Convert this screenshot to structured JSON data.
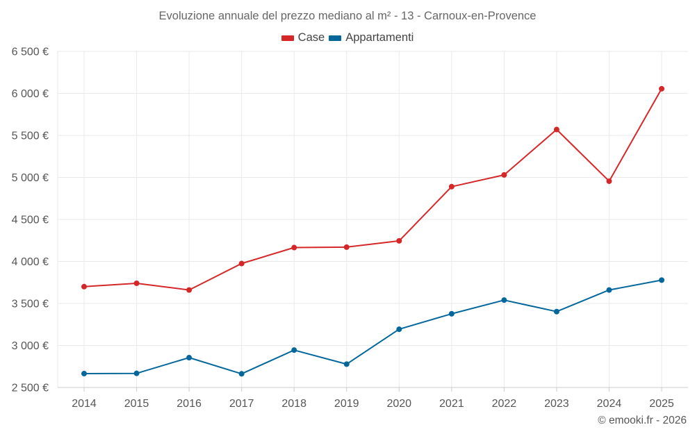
{
  "chart_data": {
    "type": "line",
    "title": "Evoluzione annuale del prezzo mediano al m² - 13 - Carnoux-en-Provence",
    "xlabel": "",
    "ylabel": "",
    "categories": [
      "2014",
      "2015",
      "2016",
      "2017",
      "2018",
      "2019",
      "2020",
      "2021",
      "2022",
      "2023",
      "2024",
      "2025"
    ],
    "ylim": [
      2500,
      6500
    ],
    "yticks": [
      2500,
      3000,
      3500,
      4000,
      4500,
      5000,
      5500,
      6000,
      6500
    ],
    "ytick_labels": [
      "2 500 €",
      "3 000 €",
      "3 500 €",
      "4 000 €",
      "4 500 €",
      "5 000 €",
      "5 500 €",
      "6 000 €",
      "6 500 €"
    ],
    "grid": true,
    "legend_position": "top-center",
    "series": [
      {
        "name": "Case",
        "color": "#d62728",
        "values": [
          3700,
          3740,
          3660,
          3975,
          4165,
          4170,
          4245,
          4890,
          5030,
          5570,
          4955,
          6055
        ]
      },
      {
        "name": "Appartamenti",
        "color": "#04679c",
        "values": [
          2665,
          2668,
          2855,
          2663,
          2945,
          2778,
          3193,
          3377,
          3540,
          3403,
          3660,
          3778
        ]
      }
    ]
  },
  "footer": {
    "credit": "© emooki.fr - 2026"
  }
}
